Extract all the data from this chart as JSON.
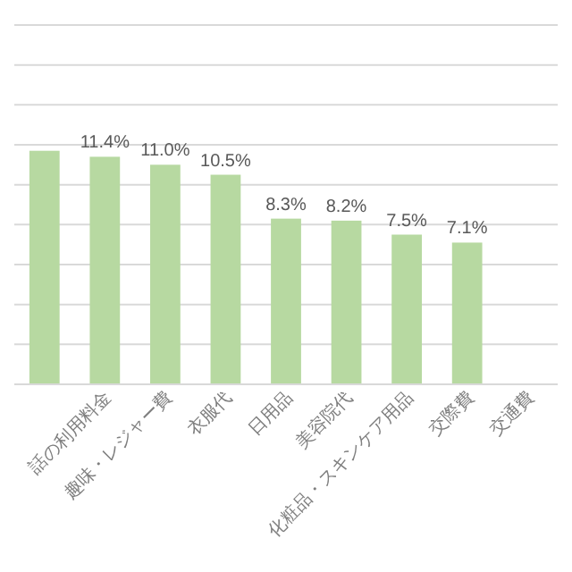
{
  "chart_data": {
    "type": "bar",
    "categories": [
      null,
      "話の利用料金",
      "趣味・レジャー費",
      "衣服代",
      "日用品",
      "美容院代",
      "化粧品・スキンケア用品",
      "交際費",
      "交通費"
    ],
    "values": [
      11.7,
      11.4,
      11.0,
      10.5,
      8.3,
      8.2,
      7.5,
      7.1,
      null
    ],
    "color": "#b7d9a1",
    "value_labels": [
      null,
      "11.4%",
      "11.0%",
      "10.5%",
      "8.3%",
      "8.2%",
      "7.5%",
      "7.1%",
      null
    ],
    "ylim": [
      0,
      18
    ],
    "yticks": [
      {
        "value": 0,
        "label": null
      },
      {
        "value": 2,
        "label": null
      },
      {
        "value": 4,
        "label": null
      },
      {
        "value": 6,
        "label": null
      },
      {
        "value": 8,
        "label": null
      },
      {
        "value": 10,
        "label": null
      },
      {
        "value": 12,
        "label": null
      },
      {
        "value": 14,
        "label": null
      },
      {
        "value": 16,
        "label": null
      },
      {
        "value": 18,
        "label": null
      }
    ],
    "tick_labels": "x",
    "grid": "y"
  }
}
